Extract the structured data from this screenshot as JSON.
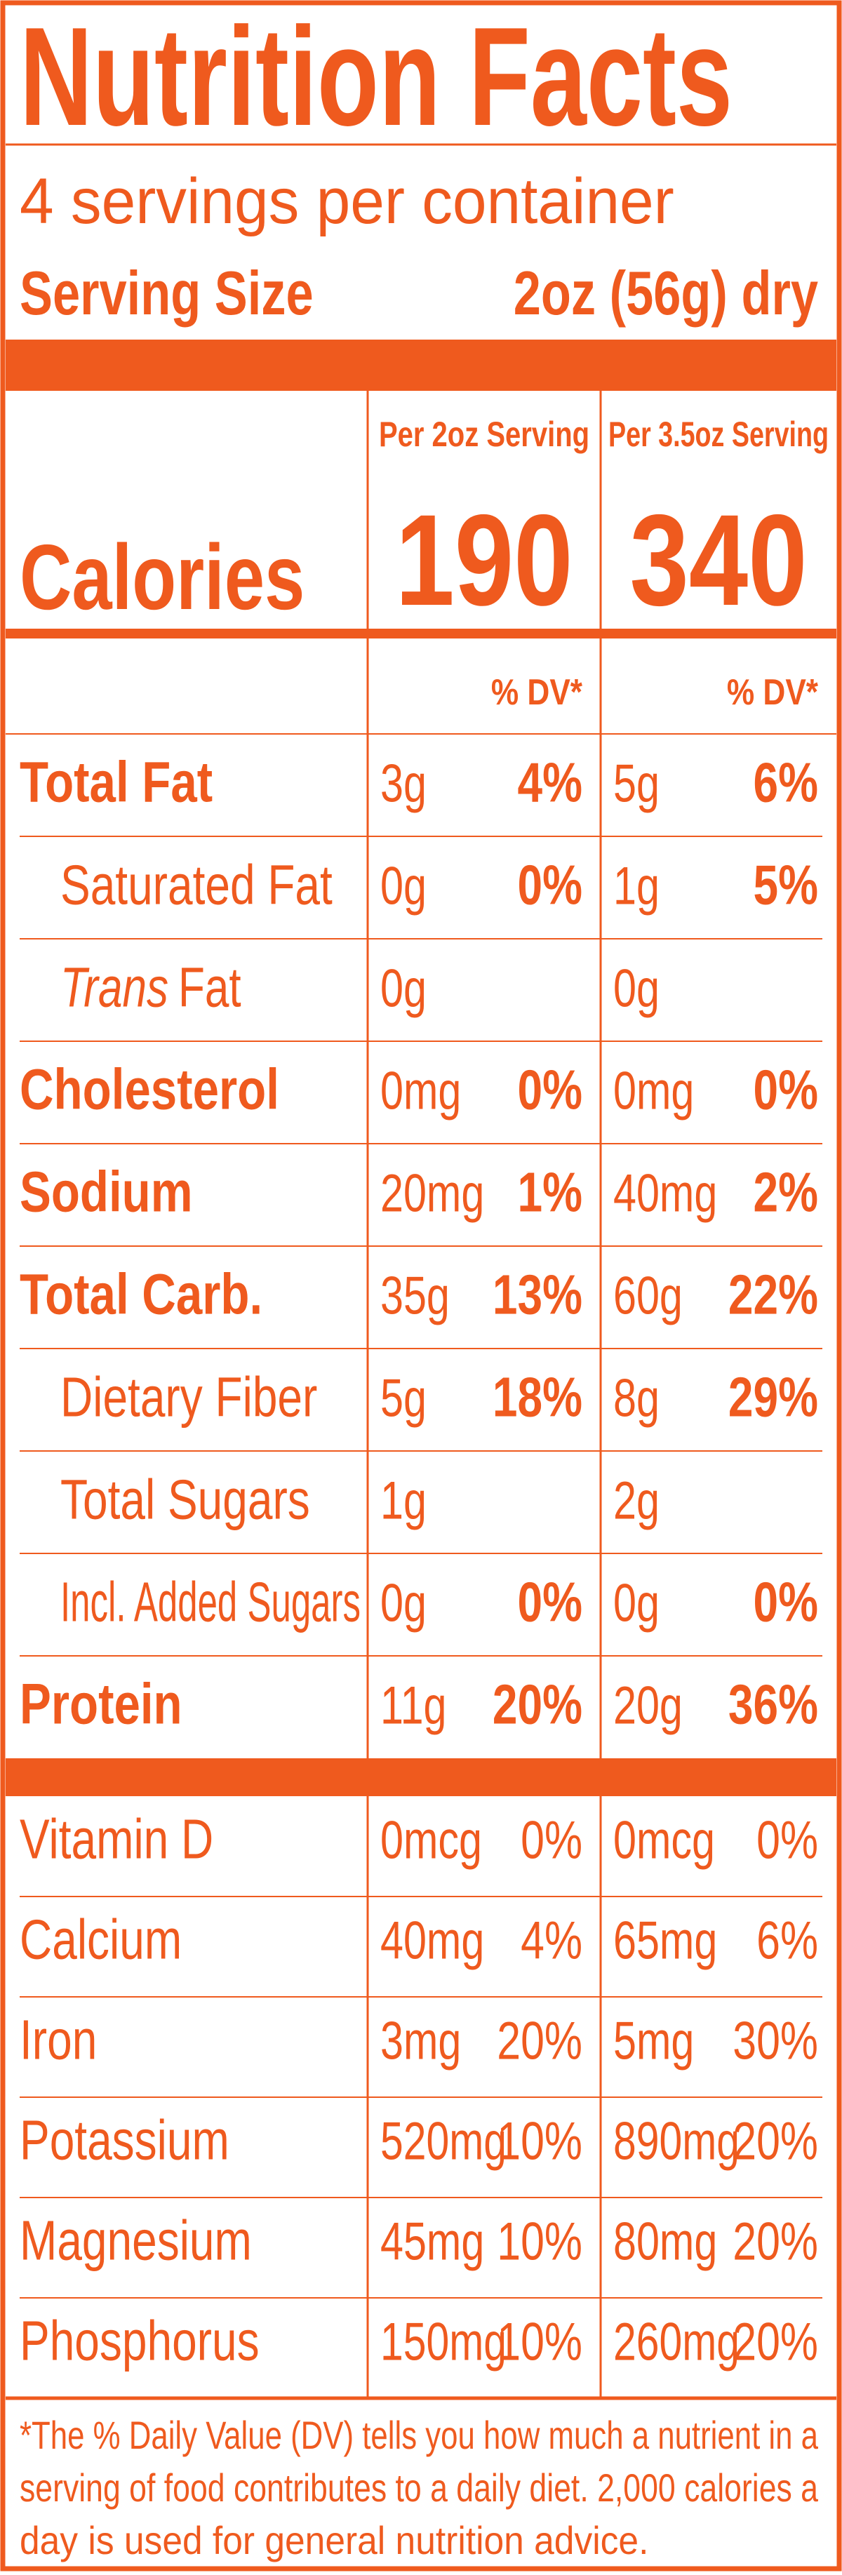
{
  "header": {
    "title": "Nutrition Facts",
    "servings": "4 servings per container",
    "serving_size_label": "Serving Size",
    "serving_size_value": "2oz (56g) dry"
  },
  "calories": {
    "label": "Calories",
    "columns": [
      {
        "heading": "Per 2oz Serving",
        "value": "190"
      },
      {
        "heading": "Per 3.5oz Serving",
        "value": "340"
      }
    ]
  },
  "dv_heading": [
    "% DV*",
    "% DV*"
  ],
  "nutrients": [
    {
      "name": "Total Fat",
      "bold": true,
      "indent": false,
      "amounts": [
        [
          "3g",
          "4%"
        ],
        [
          "5g",
          "6%"
        ]
      ]
    },
    {
      "name": "Saturated Fat",
      "bold": false,
      "indent": true,
      "amounts": [
        [
          "0g",
          "0%"
        ],
        [
          "1g",
          "5%"
        ]
      ]
    },
    {
      "name_italic": "Trans",
      "name": "Fat",
      "bold": false,
      "indent": true,
      "amounts": [
        [
          "0g"
        ],
        [
          "0g"
        ]
      ]
    },
    {
      "name": "Cholesterol",
      "bold": true,
      "indent": false,
      "amounts": [
        [
          "0mg",
          "0%"
        ],
        [
          "0mg",
          "0%"
        ]
      ]
    },
    {
      "name": "Sodium",
      "bold": true,
      "indent": false,
      "amounts": [
        [
          "20mg",
          "1%"
        ],
        [
          "40mg",
          "2%"
        ]
      ]
    },
    {
      "name": "Total Carb.",
      "bold": true,
      "indent": false,
      "amounts": [
        [
          "35g",
          "13%"
        ],
        [
          "60g",
          "22%"
        ]
      ]
    },
    {
      "name": "Dietary Fiber",
      "bold": false,
      "indent": true,
      "amounts": [
        [
          "5g",
          "18%"
        ],
        [
          "8g",
          "29%"
        ]
      ]
    },
    {
      "name": "Total Sugars",
      "bold": false,
      "indent": true,
      "amounts": [
        [
          "1g"
        ],
        [
          "2g"
        ]
      ]
    },
    {
      "name": "Incl. Added Sugars",
      "bold": false,
      "indent": true,
      "amounts": [
        [
          "0g",
          "0%"
        ],
        [
          "0g",
          "0%"
        ]
      ]
    },
    {
      "name": "Protein",
      "bold": true,
      "indent": false,
      "amounts": [
        [
          "11g",
          "20%"
        ],
        [
          "20g",
          "36%"
        ]
      ]
    }
  ],
  "vitamins": [
    {
      "name": "Vitamin D",
      "amounts": [
        [
          "0mcg",
          "0%"
        ],
        [
          "0mcg",
          "0%"
        ]
      ]
    },
    {
      "name": "Calcium",
      "amounts": [
        [
          "40mg",
          "4%"
        ],
        [
          "65mg",
          "6%"
        ]
      ]
    },
    {
      "name": "Iron",
      "amounts": [
        [
          "3mg",
          "20%"
        ],
        [
          "5mg",
          "30%"
        ]
      ]
    },
    {
      "name": "Potassium",
      "amounts": [
        [
          "520mg",
          "10%"
        ],
        [
          "890mg",
          "20%"
        ]
      ]
    },
    {
      "name": "Magnesium",
      "amounts": [
        [
          "45mg",
          "10%"
        ],
        [
          "80mg",
          "20%"
        ]
      ]
    },
    {
      "name": "Phosphorus",
      "amounts": [
        [
          "150mg",
          "10%"
        ],
        [
          "260mg",
          "20%"
        ]
      ]
    }
  ],
  "footnote": [
    "*The % Daily Value (DV) tells you how much a nutrient in a",
    "serving of food contributes to a daily diet. 2,000 calories a",
    "day is used for general nutrition advice."
  ]
}
